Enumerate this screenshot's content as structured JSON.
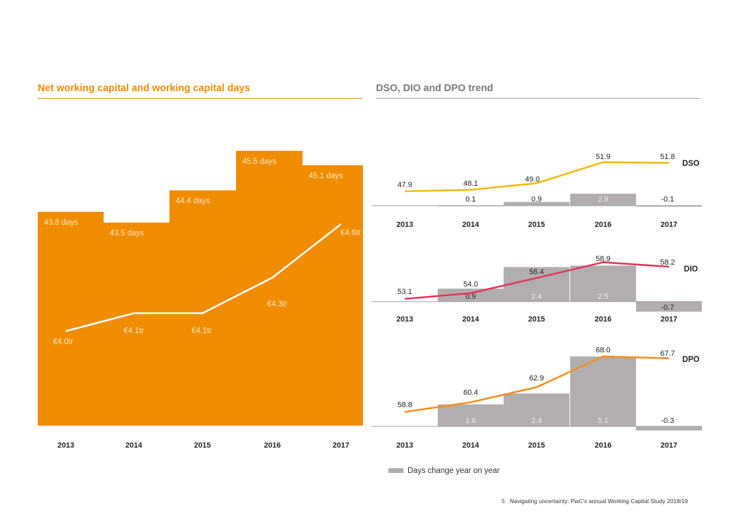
{
  "left": {
    "title": "Net working capital and working capital days"
  },
  "right": {
    "title": "DSO, DIO and DPO trend"
  },
  "colors": {
    "orange": "#f08c00",
    "grey": "#b3aeae",
    "dso": "#f5b90f",
    "dio": "#e0365f",
    "dpo": "#f0901e"
  },
  "legend": {
    "label": "Days change year on year"
  },
  "footer": {
    "page": "5",
    "text": "Navigating uncertainty: PwC's annual Working Capital Study 2018/19"
  },
  "chart_data": [
    {
      "type": "bar",
      "title": "Net working capital and working capital days",
      "categories": [
        "2013",
        "2014",
        "2015",
        "2016",
        "2017"
      ],
      "series": [
        {
          "name": "Working capital days",
          "values": [
            43.8,
            43.5,
            44.4,
            45.5,
            45.1
          ],
          "labels": [
            "43.8 days",
            "43.5 days",
            "44.4 days",
            "45.5 days",
            "45.1 days"
          ]
        },
        {
          "name": "Net working capital (€tr)",
          "type": "line",
          "values": [
            4.0,
            4.1,
            4.1,
            4.3,
            4.6
          ],
          "labels": [
            "€4.0tr",
            "€4.1tr",
            "€4.1tr",
            "€4.3tr",
            "€4.6tr"
          ]
        }
      ]
    },
    {
      "type": "bar",
      "title": "DSO",
      "name": "DSO",
      "categories": [
        "2013",
        "2014",
        "2015",
        "2016",
        "2017"
      ],
      "series": [
        {
          "name": "DSO",
          "type": "line",
          "values": [
            47.9,
            48.1,
            49.0,
            51.9,
            51.8
          ],
          "labels": [
            "47.9",
            "48.1",
            "49.0",
            "51.9",
            "51.8"
          ]
        },
        {
          "name": "Days change year on year",
          "values": [
            null,
            0.1,
            0.9,
            2.9,
            -0.1
          ],
          "labels": [
            "",
            "0.1",
            "0.9",
            "2.9",
            "-0.1"
          ]
        }
      ]
    },
    {
      "type": "bar",
      "title": "DIO",
      "name": "DIO",
      "categories": [
        "2013",
        "2014",
        "2015",
        "2016",
        "2017"
      ],
      "series": [
        {
          "name": "DIO",
          "type": "line",
          "values": [
            53.1,
            54.0,
            56.4,
            58.9,
            58.2
          ],
          "labels": [
            "53.1",
            "54.0",
            "56.4",
            "58.9",
            "58.2"
          ]
        },
        {
          "name": "Days change year on year",
          "values": [
            null,
            0.9,
            2.4,
            2.5,
            -0.7
          ],
          "labels": [
            "",
            "0.9",
            "2.4",
            "2.5",
            "-0.7"
          ]
        }
      ]
    },
    {
      "type": "bar",
      "title": "DPO",
      "name": "DPO",
      "categories": [
        "2013",
        "2014",
        "2015",
        "2016",
        "2017"
      ],
      "series": [
        {
          "name": "DPO",
          "type": "line",
          "values": [
            58.8,
            60.4,
            62.9,
            68.0,
            67.7
          ],
          "labels": [
            "58.8",
            "60.4",
            "62.9",
            "68.0",
            "67.7"
          ]
        },
        {
          "name": "Days change year on year",
          "values": [
            null,
            1.6,
            2.4,
            5.1,
            -0.3
          ],
          "labels": [
            "",
            "1.6",
            "2.4",
            "5.1",
            "-0.3"
          ]
        }
      ]
    }
  ]
}
